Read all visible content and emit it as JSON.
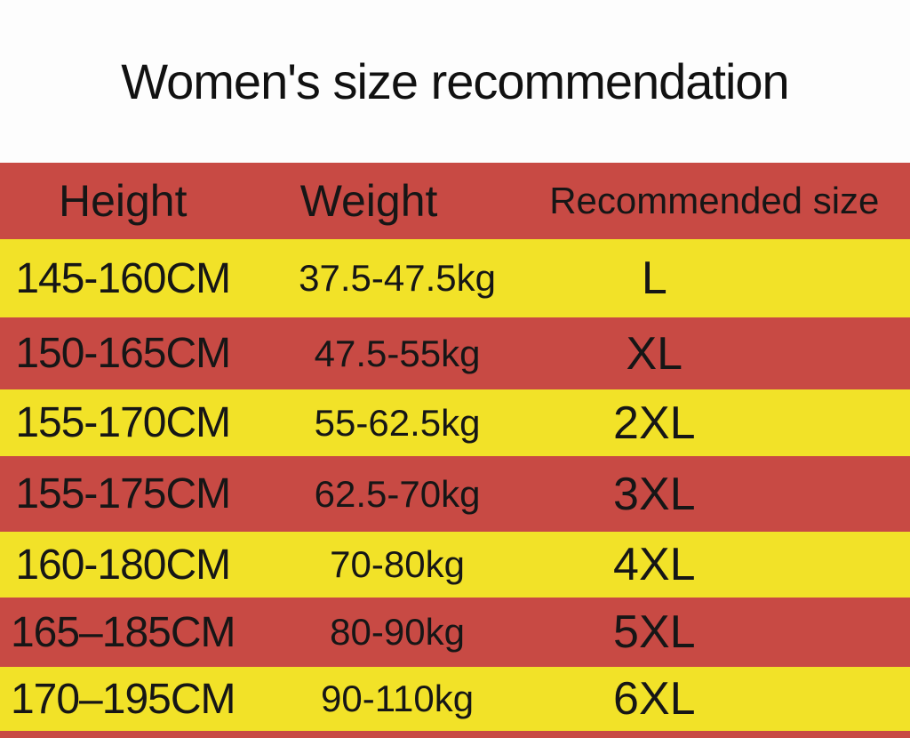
{
  "page": {
    "title": "Women's size recommendation"
  },
  "colors": {
    "row_red": "#c84a44",
    "row_yellow": "#f2e228",
    "background": "#fdfdfd",
    "text": "#161616"
  },
  "table": {
    "headers": {
      "height": "Height",
      "weight": "Weight",
      "size": "Recommended size"
    },
    "rows": [
      {
        "height": "145-160CM",
        "weight": "37.5-47.5kg",
        "size": "L"
      },
      {
        "height": "150-165CM",
        "weight": "47.5-55kg",
        "size": "XL"
      },
      {
        "height": "155-170CM",
        "weight": "55-62.5kg",
        "size": "2XL"
      },
      {
        "height": "155-175CM",
        "weight": "62.5-70kg",
        "size": "3XL"
      },
      {
        "height": "160-180CM",
        "weight": "70-80kg",
        "size": "4XL"
      },
      {
        "height": "165–185CM",
        "weight": "80-90kg",
        "size": "5XL"
      },
      {
        "height": "170–195CM",
        "weight": "90-110kg",
        "size": "6XL"
      }
    ]
  },
  "chart_data": {
    "type": "table",
    "title": "Women's size recommendation",
    "columns": [
      "Height",
      "Weight",
      "Recommended size"
    ],
    "rows": [
      [
        "145-160CM",
        "37.5-47.5kg",
        "L"
      ],
      [
        "150-165CM",
        "47.5-55kg",
        "XL"
      ],
      [
        "155-170CM",
        "55-62.5kg",
        "2XL"
      ],
      [
        "155-175CM",
        "62.5-70kg",
        "3XL"
      ],
      [
        "160-180CM",
        "70-80kg",
        "4XL"
      ],
      [
        "165-185CM",
        "80-90kg",
        "5XL"
      ],
      [
        "170-195CM",
        "90-110kg",
        "6XL"
      ]
    ]
  }
}
